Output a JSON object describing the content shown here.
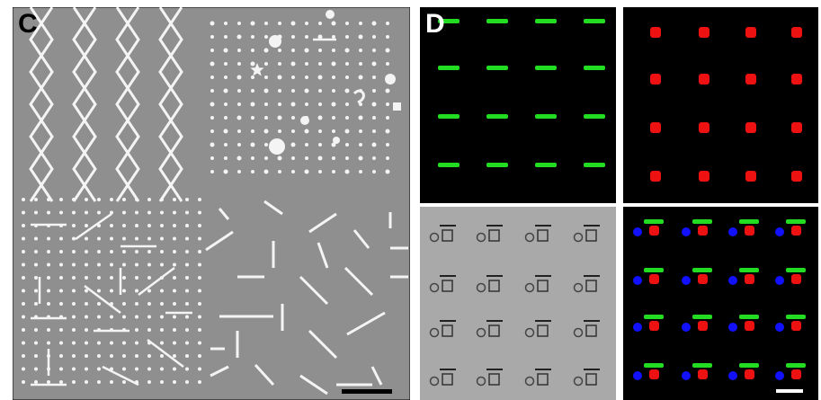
{
  "panels": {
    "c": {
      "label": "C"
    },
    "d": {
      "label": "D"
    }
  },
  "colors": {
    "sem_background": "#8f8f8f",
    "sem_features": "#f4f4f4",
    "fluor_background": "#000000",
    "green_channel": "#22dd22",
    "red_channel": "#ee1111",
    "blue_channel": "#1111ff",
    "dic_background": "#a9a9a9",
    "scale_bar_c": "#000000",
    "scale_bar_d": "#ffffff"
  },
  "icons": {
    "star": "star-icon",
    "question": "question-mark-shape",
    "square": "square-shape"
  }
}
